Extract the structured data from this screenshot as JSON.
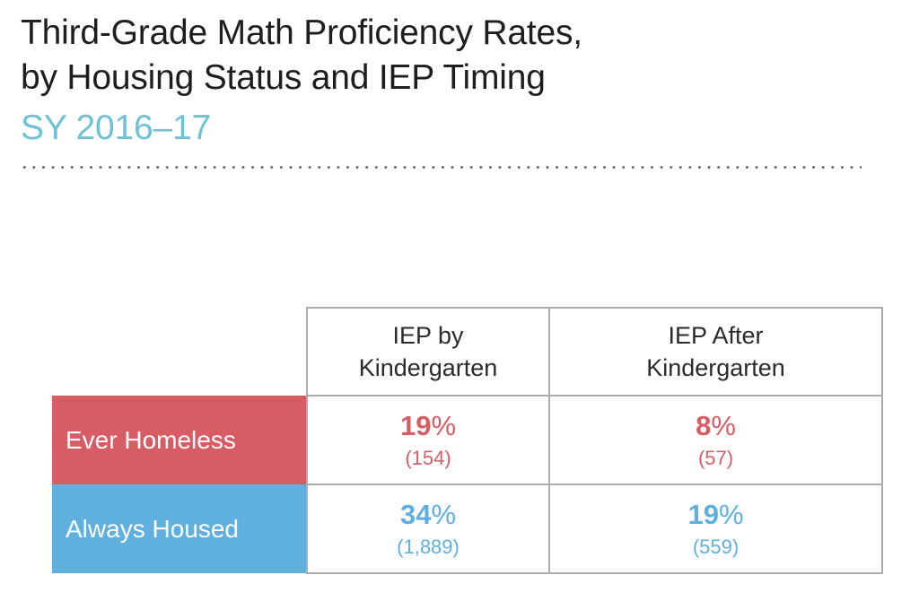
{
  "header": {
    "title_line1": "Third-Grade Math Proficiency Rates,",
    "title_line2": "by Housing Status and IEP Timing",
    "subtitle": "SY 2016–17"
  },
  "colors": {
    "accent_red": "#d85c64",
    "accent_blue": "#5fafdf",
    "subtitle_teal": "#6fc2d6",
    "title_text": "#1e1e1e",
    "header_text": "#2b2b2b",
    "table_border": "#a9abae",
    "dots_gray": "#6d6e71",
    "background": "#ffffff"
  },
  "chart_data": {
    "type": "table",
    "title": "Third-Grade Math Proficiency Rates, by Housing Status and IEP Timing",
    "subtitle": "SY 2016–17",
    "columns": [
      "IEP by\nKindergarten",
      "IEP After\nKindergarten"
    ],
    "rows": [
      {
        "label": "Ever Homeless",
        "row_color": "#d85c64",
        "cells": [
          {
            "pct": "19",
            "unit": "%",
            "count": "(154)",
            "pct_value": 19,
            "n": 154
          },
          {
            "pct": "8",
            "unit": "%",
            "count": "(57)",
            "pct_value": 8,
            "n": 57
          }
        ]
      },
      {
        "label": "Always Housed",
        "row_color": "#5fafdf",
        "cells": [
          {
            "pct": "34",
            "unit": "%",
            "count": "(1,889)",
            "pct_value": 34,
            "n": 1889
          },
          {
            "pct": "19",
            "unit": "%",
            "count": "(559)",
            "pct_value": 19,
            "n": 559
          }
        ]
      }
    ],
    "layout": {
      "grid": false,
      "legend": "none"
    }
  }
}
